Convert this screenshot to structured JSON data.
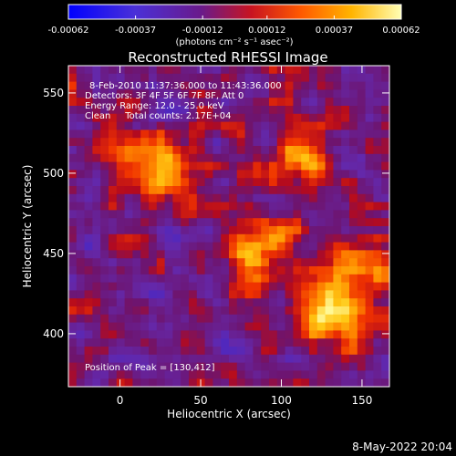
{
  "chart_data": {
    "type": "heatmap",
    "title": "Reconstructed RHESSI Image",
    "xlabel": "Heliocentric X (arcsec)",
    "ylabel": "Heliocentric Y (arcsec)",
    "xlim": [
      -32,
      167
    ],
    "ylim": [
      367,
      567
    ],
    "x_ticks": [
      0,
      50,
      100,
      150
    ],
    "y_ticks": [
      400,
      450,
      500,
      550
    ],
    "colorbar": {
      "range": [
        -0.00062,
        0.00062
      ],
      "tick_values": [
        -0.00062,
        -0.00037,
        -0.00012,
        0.00012,
        0.00037,
        0.00062
      ],
      "tick_labels": [
        "-0.00062",
        "-0.00037",
        "-0.00012",
        "0.00012",
        "0.00037",
        "0.00062"
      ],
      "unit_label": "(photons cm⁻² s⁻¹ asec⁻²)",
      "colors": [
        "#0000ff",
        "#5a28c8",
        "#a01e50",
        "#ff3c00",
        "#ffb400",
        "#ffff96"
      ]
    },
    "annotations": {
      "time_range": "8-Feb-2010 11:37:36.000 to 11:43:36.000",
      "detectors": "Detectors: 3F 4F 5F 6F 7F 8F, Att 0",
      "energy": "Energy Range: 12.0 - 25.0 keV",
      "clean": "Clean     Total counts: 2.17E+04",
      "peak": "Position of Peak = [130,412]"
    },
    "sources": [
      {
        "x": 130,
        "y": 412,
        "peak": 0.00062
      },
      {
        "x": 85,
        "y": 455,
        "peak": 0.0005
      },
      {
        "x": 20,
        "y": 505,
        "peak": 0.00052
      },
      {
        "x": 110,
        "y": 510,
        "peak": 0.00045
      },
      {
        "x": 150,
        "y": 445,
        "peak": 0.0004
      }
    ]
  },
  "footer": {
    "timestamp": "8-May-2022 20:04"
  }
}
